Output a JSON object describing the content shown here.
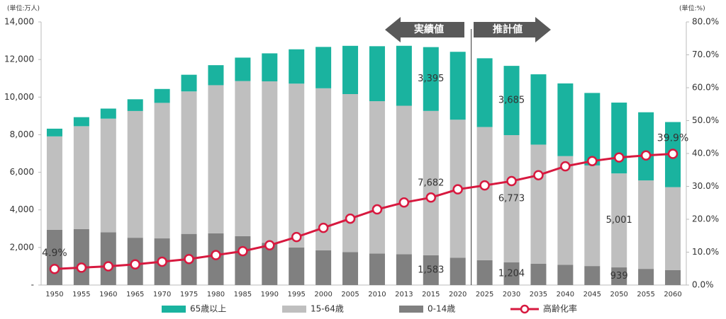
{
  "chart_data": {
    "type": "bar",
    "stacked": true,
    "y_unit_label": "(単位:万人)",
    "y2_unit_label": "(単位:%)",
    "annotations": [
      "実績値",
      "推計値"
    ],
    "categories": [
      "1950",
      "1955",
      "1960",
      "1965",
      "1970",
      "1975",
      "1980",
      "1985",
      "1990",
      "1995",
      "2000",
      "2005",
      "2010",
      "2013",
      "2015",
      "2020",
      "2025",
      "2030",
      "2035",
      "2040",
      "2045",
      "2050",
      "2055",
      "2060"
    ],
    "series": [
      {
        "name": "0-14歳",
        "color": "#808080",
        "values": [
          2943,
          2980,
          2807,
          2517,
          2482,
          2722,
          2751,
          2603,
          2249,
          2001,
          1847,
          1752,
          1680,
          1639,
          1583,
          1457,
          1324,
          1204,
          1129,
          1073,
          1012,
          939,
          861,
          791
        ],
        "value_labels": [
          null,
          null,
          null,
          null,
          null,
          null,
          null,
          null,
          null,
          null,
          null,
          null,
          null,
          null,
          "1,583",
          null,
          null,
          "1,204",
          null,
          null,
          null,
          "939",
          null,
          null
        ]
      },
      {
        "name": "15-64歳",
        "color": "#bfbfbf",
        "values": [
          4966,
          5473,
          6047,
          6744,
          7212,
          7581,
          7883,
          8251,
          8590,
          8716,
          8622,
          8409,
          8103,
          7901,
          7682,
          7341,
          7085,
          6773,
          6343,
          5787,
          5353,
          5001,
          4706,
          4418
        ],
        "value_labels": [
          null,
          null,
          null,
          null,
          null,
          null,
          null,
          null,
          null,
          null,
          null,
          null,
          null,
          null,
          "7,682",
          null,
          null,
          "6,773",
          null,
          null,
          null,
          "5,001",
          null,
          null
        ]
      },
      {
        "name": "65歳以上",
        "color": "#1ab39f",
        "values": [
          411,
          479,
          535,
          624,
          739,
          887,
          1065,
          1247,
          1489,
          1826,
          2201,
          2567,
          2925,
          3190,
          3395,
          3612,
          3657,
          3685,
          3741,
          3868,
          3856,
          3768,
          3626,
          3464
        ],
        "value_labels": [
          null,
          null,
          null,
          null,
          null,
          null,
          null,
          null,
          null,
          null,
          null,
          null,
          null,
          null,
          "3,395",
          null,
          null,
          "3,685",
          null,
          null,
          null,
          null,
          null,
          null
        ]
      },
      {
        "name": "高齢化率",
        "type": "line",
        "axis": "y2",
        "color": "#d7193f",
        "values": [
          4.9,
          5.3,
          5.7,
          6.3,
          7.1,
          7.9,
          9.1,
          10.3,
          12.1,
          14.6,
          17.4,
          20.2,
          23.0,
          25.1,
          26.6,
          29.1,
          30.3,
          31.6,
          33.4,
          36.1,
          37.7,
          38.8,
          39.4,
          39.9
        ],
        "value_labels": [
          "4.9%",
          null,
          null,
          null,
          null,
          null,
          null,
          null,
          null,
          null,
          null,
          null,
          null,
          null,
          null,
          null,
          null,
          null,
          null,
          null,
          null,
          null,
          null,
          "39.9%"
        ]
      }
    ],
    "ylim": [
      0,
      14000
    ],
    "yticks": [
      {
        "value": 0,
        "label": "-"
      },
      {
        "value": 2000,
        "label": "2,000"
      },
      {
        "value": 4000,
        "label": "4,000"
      },
      {
        "value": 6000,
        "label": "6,000"
      },
      {
        "value": 8000,
        "label": "8,000"
      },
      {
        "value": 10000,
        "label": "10,000"
      },
      {
        "value": 12000,
        "label": "12,000"
      },
      {
        "value": 14000,
        "label": "14,000"
      }
    ],
    "y2lim": [
      0,
      80
    ],
    "y2ticks": [
      {
        "value": 0,
        "label": "0.0%"
      },
      {
        "value": 10,
        "label": "10.0%"
      },
      {
        "value": 20,
        "label": "20.0%"
      },
      {
        "value": 30,
        "label": "30.0%"
      },
      {
        "value": 40,
        "label": "40.0%"
      },
      {
        "value": 50,
        "label": "50.0%"
      },
      {
        "value": 60,
        "label": "60.0%"
      },
      {
        "value": 70,
        "label": "70.0%"
      },
      {
        "value": 80,
        "label": "80.0%"
      }
    ],
    "grid": false,
    "legend": "bottom"
  }
}
